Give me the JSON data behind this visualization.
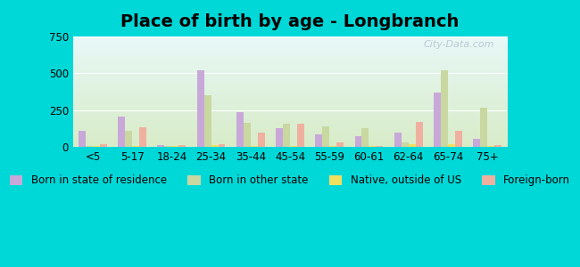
{
  "title": "Place of birth by age - Longbranch",
  "categories": [
    "<5",
    "5-17",
    "18-24",
    "25-34",
    "35-44",
    "45-54",
    "55-59",
    "60-61",
    "62-64",
    "65-74",
    "75+"
  ],
  "series": {
    "Born in state of residence": [
      110,
      210,
      15,
      520,
      240,
      130,
      85,
      75,
      100,
      370,
      55
    ],
    "Born in other state": [
      10,
      110,
      10,
      350,
      165,
      160,
      140,
      130,
      30,
      520,
      265
    ],
    "Native, outside of US": [
      5,
      10,
      5,
      15,
      10,
      10,
      5,
      10,
      20,
      20,
      10
    ],
    "Foreign-born": [
      20,
      135,
      15,
      20,
      100,
      160,
      30,
      10,
      170,
      110,
      15
    ]
  },
  "colors": {
    "Born in state of residence": "#c8a8d8",
    "Born in other state": "#c8d8a0",
    "Native, outside of US": "#f0e060",
    "Foreign-born": "#f0b0a0"
  },
  "ylim": [
    0,
    750
  ],
  "yticks": [
    0,
    250,
    500,
    750
  ],
  "bg_outer": "#00d8d8",
  "bg_plot_top": "#e8f8f8",
  "bg_plot_bottom": "#d8ecc8",
  "watermark": "City-Data.com",
  "bar_width": 0.18,
  "legend_fontsize": 8.5,
  "title_fontsize": 14
}
